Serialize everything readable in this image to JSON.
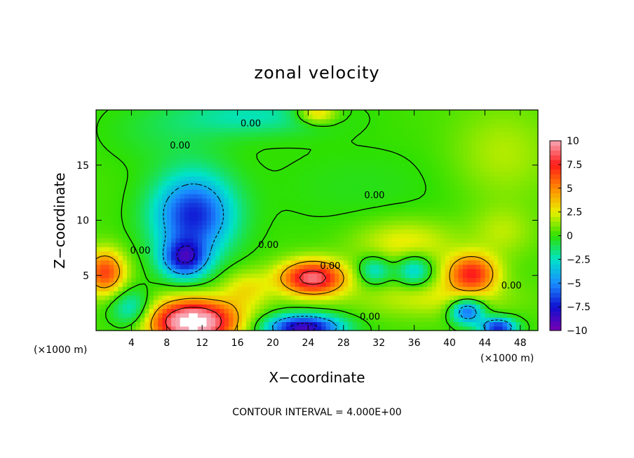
{
  "chart_data": {
    "type": "heatmap",
    "title": "zonal velocity",
    "xlabel": "X−coordinate",
    "ylabel": "Z−coordinate",
    "x_unit": "(×1000 m)",
    "y_unit": "(×1000 m)",
    "xlim": [
      0,
      50
    ],
    "ylim": [
      0,
      20
    ],
    "x_ticks": [
      4,
      8,
      12,
      16,
      20,
      24,
      28,
      32,
      36,
      40,
      44,
      48
    ],
    "y_ticks": [
      5,
      10,
      15
    ],
    "x_tick_labels": [
      "4",
      "8",
      "12",
      "16",
      "20",
      "24",
      "28",
      "32",
      "36",
      "40",
      "44",
      "48"
    ],
    "y_tick_labels": [
      "5",
      "10",
      "15"
    ],
    "footnote": "CONTOUR INTERVAL = 4.000E+00",
    "colorbar": {
      "range": [
        -10,
        10
      ],
      "ticks": [
        10,
        7.5,
        5,
        2.5,
        0,
        -2.5,
        -5,
        -7.5,
        -10
      ],
      "tick_labels": [
        "10",
        "7.5",
        "5",
        "2.5",
        "0",
        "−2.5",
        "−5",
        "−7.5",
        "−10"
      ],
      "colors": [
        "#f7a6b4",
        "#ff1a1a",
        "#ff8a00",
        "#e8f000",
        "#2ee000",
        "#00e3c8",
        "#1a8cff",
        "#1010d0",
        "#7a00b0"
      ]
    },
    "contour_labels": [
      "0.00",
      "0.00",
      "0.00",
      "0.00",
      "0.00",
      "0.00",
      "0.00",
      "0.00"
    ],
    "features": [
      {
        "x": 11,
        "z": 10.5,
        "value": -7.5,
        "sx": 3.2,
        "sz": 2.6
      },
      {
        "x": 10,
        "z": 6.5,
        "value": -7.0,
        "sx": 1.8,
        "sz": 1.2
      },
      {
        "x": 1,
        "z": 5.3,
        "value": 6.5,
        "sx": 1.6,
        "sz": 1.4
      },
      {
        "x": 24.5,
        "z": 4.8,
        "value": 9.0,
        "sx": 2.6,
        "sz": 1.1
      },
      {
        "x": 42.5,
        "z": 5.2,
        "value": 7.0,
        "sx": 2.0,
        "sz": 1.2
      },
      {
        "x": 11,
        "z": 0.8,
        "value": 12.0,
        "sx": 3.4,
        "sz": 1.4
      },
      {
        "x": 23.5,
        "z": 0.3,
        "value": -9.5,
        "sx": 3.0,
        "sz": 0.8
      },
      {
        "x": 42,
        "z": 1.8,
        "value": -7.0,
        "sx": 1.3,
        "sz": 0.8
      },
      {
        "x": 45.5,
        "z": 0.3,
        "value": -8.0,
        "sx": 1.4,
        "sz": 0.6
      },
      {
        "x": 36,
        "z": 5.5,
        "value": -4.0,
        "sx": 1.4,
        "sz": 1.0
      },
      {
        "x": 31.5,
        "z": 5.5,
        "value": -3.5,
        "sx": 1.3,
        "sz": 0.9
      },
      {
        "x": 4,
        "z": 2.0,
        "value": -3.5,
        "sx": 1.6,
        "sz": 1.2
      },
      {
        "x": 18,
        "z": 19.5,
        "value": -2.5,
        "sx": 6.0,
        "sz": 1.2
      },
      {
        "x": 25,
        "z": 19.7,
        "value": 4.0,
        "sx": 1.6,
        "sz": 0.6
      },
      {
        "x": 35,
        "z": 8.0,
        "value": 2.5,
        "sx": 4.0,
        "sz": 1.5
      },
      {
        "x": 38,
        "z": 3.0,
        "value": 2.0,
        "sx": 6.0,
        "sz": 1.2
      },
      {
        "x": 17,
        "z": 3.8,
        "value": 2.5,
        "sx": 2.0,
        "sz": 1.2
      },
      {
        "x": 46,
        "z": 16.0,
        "value": 1.5,
        "sx": 4.0,
        "sz": 3.0
      },
      {
        "x": 46,
        "z": 9.0,
        "value": 1.5,
        "sx": 2.5,
        "sz": 1.6
      },
      {
        "x": 30,
        "z": 13.0,
        "value": -0.6,
        "sx": 8.0,
        "sz": 3.0
      },
      {
        "x": 8,
        "z": 18.0,
        "value": -1.0,
        "sx": 5.0,
        "sz": 2.0
      }
    ]
  }
}
